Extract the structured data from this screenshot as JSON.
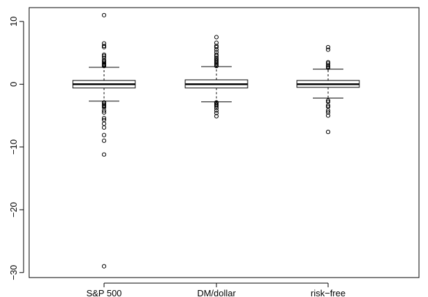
{
  "chart_data": {
    "type": "box",
    "title": "",
    "xlabel": "",
    "ylabel": "",
    "ylim": [
      -30.8,
      12.2
    ],
    "yticks": [
      -30,
      -20,
      -10,
      0,
      10
    ],
    "ytick_labels": [
      "−30",
      "−20",
      "−10",
      "0",
      "10"
    ],
    "categories": [
      "S&P 500",
      "DM/dollar",
      "risk−free"
    ],
    "boxes": [
      {
        "name": "S&P 500",
        "q1": -0.6,
        "median": 0.0,
        "q3": 0.6,
        "whisker_low": -2.7,
        "whisker_high": 2.7,
        "outliers": [
          11.0,
          6.5,
          6.1,
          5.9,
          4.7,
          4.5,
          4.2,
          3.8,
          3.6,
          3.4,
          3.2,
          3.1,
          3.0,
          2.9,
          -2.9,
          -3.0,
          -3.2,
          -3.4,
          -3.5,
          -3.7,
          -4.2,
          -4.5,
          -5.4,
          -5.7,
          -6.3,
          -6.9,
          -8.1,
          -9.0,
          -11.2,
          -29.0
        ]
      },
      {
        "name": "DM/dollar",
        "q1": -0.6,
        "median": 0.0,
        "q3": 0.7,
        "whisker_low": -2.8,
        "whisker_high": 2.8,
        "outliers": [
          7.5,
          6.6,
          6.1,
          5.9,
          5.5,
          5.1,
          4.7,
          4.5,
          4.2,
          4.0,
          3.8,
          3.6,
          3.4,
          3.2,
          3.0,
          2.9,
          -2.9,
          -3.0,
          -3.2,
          -3.3,
          -3.5,
          -3.8,
          -4.2,
          -4.6,
          -5.1
        ]
      },
      {
        "name": "risk−free",
        "q1": -0.5,
        "median": 0.0,
        "q3": 0.6,
        "whisker_low": -2.2,
        "whisker_high": 2.4,
        "outliers": [
          5.9,
          5.5,
          3.5,
          3.3,
          3.0,
          2.8,
          2.6,
          -2.6,
          -2.8,
          -3.4,
          -3.6,
          -4.2,
          -4.5,
          -5.0,
          -7.6
        ]
      }
    ]
  }
}
